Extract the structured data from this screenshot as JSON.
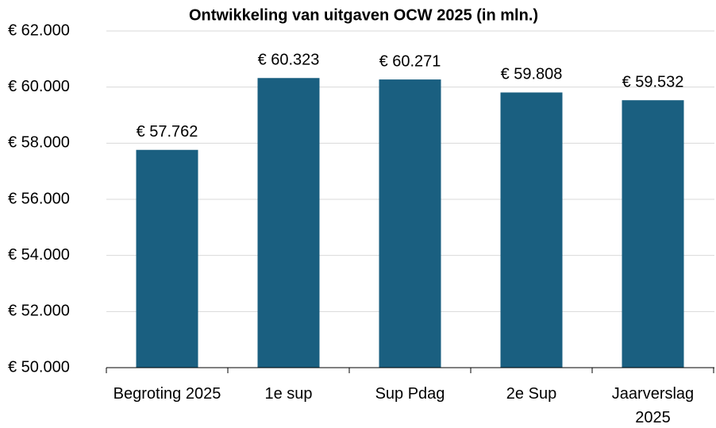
{
  "chart_data": {
    "type": "bar",
    "title": "Ontwikkeling van uitgaven OCW 2025 (in mln.)",
    "categories": [
      "Begroting 2025",
      "1e sup",
      "Sup Pdag",
      "2e Sup",
      "Jaarverslag 2025"
    ],
    "values": [
      57762,
      60323,
      60271,
      59808,
      59532
    ],
    "value_labels": [
      "€ 57.762",
      "€ 60.323",
      "€ 60.271",
      "€ 59.808",
      "€ 59.532"
    ],
    "color": "#1a5f80",
    "ylim": [
      50000,
      62000
    ],
    "yticks": [
      {
        "value": 50000,
        "label": "€ 50.000"
      },
      {
        "value": 52000,
        "label": "€ 52.000"
      },
      {
        "value": 54000,
        "label": "€ 54.000"
      },
      {
        "value": 56000,
        "label": "€ 56.000"
      },
      {
        "value": 58000,
        "label": "€ 58.000"
      },
      {
        "value": 60000,
        "label": "€ 60.000"
      },
      {
        "value": 62000,
        "label": "€ 62.000"
      }
    ],
    "grid": true
  }
}
